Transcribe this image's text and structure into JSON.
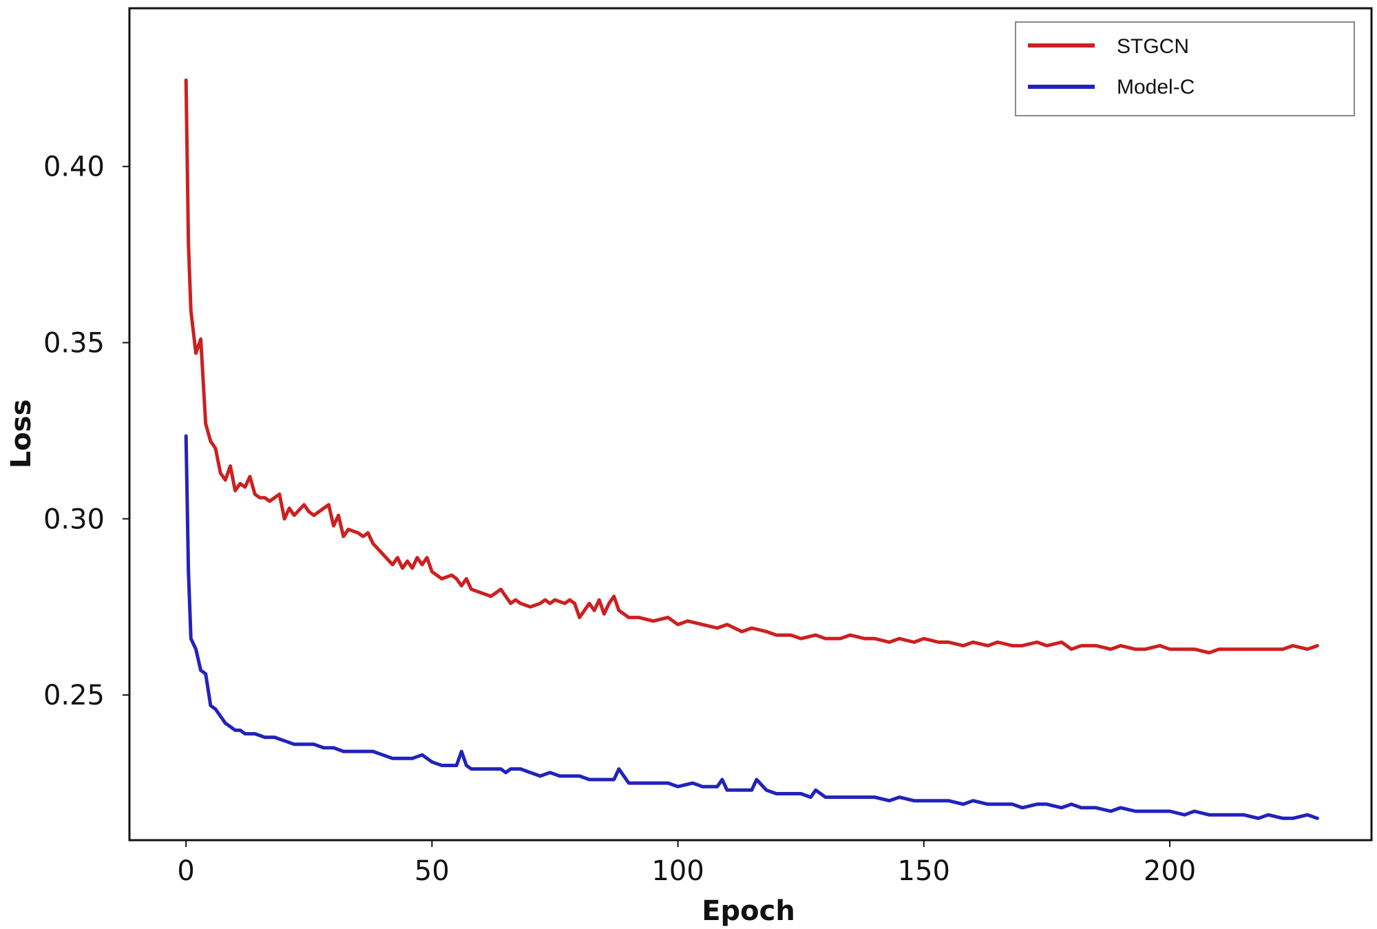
{
  "chart_data": {
    "type": "line",
    "title": "",
    "xlabel": "Epoch",
    "ylabel": "Loss",
    "xlim": [
      -11.5,
      241
    ],
    "ylim": [
      0.2088,
      0.4449
    ],
    "xticks": [
      0,
      50,
      100,
      150,
      200
    ],
    "xtick_labels": [
      "0",
      "50",
      "100",
      "150",
      "200"
    ],
    "yticks": [
      0.25,
      0.3,
      0.35,
      0.4
    ],
    "ytick_labels": [
      "0.25",
      "0.30",
      "0.35",
      "0.40"
    ],
    "grid": false,
    "legend_position": "top-right",
    "series": [
      {
        "name": "STGCN",
        "color": "#cc2020",
        "x": [
          0,
          0.5,
          1,
          2,
          3,
          4,
          5,
          6,
          7,
          8,
          9,
          10,
          11,
          12,
          13,
          14,
          15,
          16,
          17,
          18,
          19,
          20,
          21,
          22,
          24,
          25,
          26,
          28,
          29,
          30,
          31,
          32,
          33,
          35,
          36,
          37,
          38,
          40,
          42,
          43,
          44,
          45,
          46,
          47,
          48,
          49,
          50,
          52,
          54,
          55,
          56,
          57,
          58,
          60,
          62,
          63,
          64,
          66,
          67,
          68,
          70,
          72,
          73,
          74,
          75,
          77,
          78,
          79,
          80,
          82,
          83,
          84,
          85,
          86,
          87,
          88,
          90,
          92,
          95,
          98,
          100,
          102,
          105,
          108,
          110,
          113,
          115,
          118,
          120,
          123,
          125,
          128,
          130,
          133,
          135,
          138,
          140,
          143,
          145,
          148,
          150,
          153,
          155,
          158,
          160,
          163,
          165,
          168,
          170,
          173,
          175,
          178,
          180,
          182,
          185,
          188,
          190,
          193,
          195,
          198,
          200,
          203,
          205,
          208,
          210,
          213,
          215,
          218,
          220,
          223,
          225,
          228,
          230
        ],
        "values": [
          0.4245,
          0.378,
          0.359,
          0.347,
          0.351,
          0.327,
          0.322,
          0.32,
          0.313,
          0.311,
          0.315,
          0.308,
          0.31,
          0.309,
          0.312,
          0.307,
          0.306,
          0.306,
          0.305,
          0.306,
          0.307,
          0.3,
          0.303,
          0.301,
          0.304,
          0.302,
          0.301,
          0.303,
          0.304,
          0.298,
          0.301,
          0.295,
          0.297,
          0.296,
          0.295,
          0.296,
          0.293,
          0.29,
          0.287,
          0.289,
          0.286,
          0.288,
          0.286,
          0.289,
          0.287,
          0.289,
          0.285,
          0.283,
          0.284,
          0.283,
          0.281,
          0.283,
          0.28,
          0.279,
          0.278,
          0.279,
          0.28,
          0.276,
          0.277,
          0.276,
          0.275,
          0.276,
          0.277,
          0.276,
          0.277,
          0.276,
          0.277,
          0.276,
          0.272,
          0.276,
          0.274,
          0.277,
          0.273,
          0.276,
          0.278,
          0.274,
          0.272,
          0.272,
          0.271,
          0.272,
          0.27,
          0.271,
          0.27,
          0.269,
          0.27,
          0.268,
          0.269,
          0.268,
          0.267,
          0.267,
          0.266,
          0.267,
          0.266,
          0.266,
          0.267,
          0.266,
          0.266,
          0.265,
          0.266,
          0.265,
          0.266,
          0.265,
          0.265,
          0.264,
          0.265,
          0.264,
          0.265,
          0.264,
          0.264,
          0.265,
          0.264,
          0.265,
          0.263,
          0.264,
          0.264,
          0.263,
          0.264,
          0.263,
          0.263,
          0.264,
          0.263,
          0.263,
          0.263,
          0.262,
          0.263,
          0.263,
          0.263,
          0.263,
          0.263,
          0.263,
          0.264,
          0.263,
          0.264
        ]
      },
      {
        "name": "Model-C",
        "color": "#2222bb",
        "x": [
          0,
          0.5,
          1,
          2,
          3,
          4,
          5,
          6,
          7,
          8,
          9,
          10,
          11,
          12,
          14,
          16,
          18,
          20,
          22,
          24,
          26,
          28,
          30,
          32,
          34,
          36,
          38,
          40,
          42,
          44,
          46,
          48,
          50,
          52,
          54,
          55,
          56,
          57,
          58,
          60,
          62,
          64,
          65,
          66,
          68,
          70,
          72,
          74,
          76,
          78,
          80,
          82,
          84,
          86,
          87,
          88,
          90,
          92,
          95,
          98,
          100,
          103,
          105,
          108,
          109,
          110,
          113,
          115,
          116,
          118,
          120,
          123,
          125,
          127,
          128,
          130,
          133,
          135,
          138,
          140,
          143,
          145,
          148,
          150,
          153,
          155,
          158,
          160,
          163,
          165,
          168,
          170,
          173,
          175,
          178,
          180,
          182,
          185,
          188,
          190,
          193,
          195,
          198,
          200,
          203,
          205,
          208,
          210,
          213,
          215,
          218,
          220,
          223,
          225,
          228,
          230
        ],
        "values": [
          0.3235,
          0.285,
          0.266,
          0.263,
          0.257,
          0.256,
          0.247,
          0.246,
          0.244,
          0.242,
          0.241,
          0.24,
          0.24,
          0.239,
          0.239,
          0.238,
          0.238,
          0.237,
          0.236,
          0.236,
          0.236,
          0.235,
          0.235,
          0.234,
          0.234,
          0.234,
          0.234,
          0.233,
          0.232,
          0.232,
          0.232,
          0.233,
          0.231,
          0.23,
          0.23,
          0.23,
          0.234,
          0.23,
          0.229,
          0.229,
          0.229,
          0.229,
          0.228,
          0.229,
          0.229,
          0.228,
          0.227,
          0.228,
          0.227,
          0.227,
          0.227,
          0.226,
          0.226,
          0.226,
          0.226,
          0.229,
          0.225,
          0.225,
          0.225,
          0.225,
          0.224,
          0.225,
          0.224,
          0.224,
          0.226,
          0.223,
          0.223,
          0.223,
          0.226,
          0.223,
          0.222,
          0.222,
          0.222,
          0.221,
          0.223,
          0.221,
          0.221,
          0.221,
          0.221,
          0.221,
          0.22,
          0.221,
          0.22,
          0.22,
          0.22,
          0.22,
          0.219,
          0.22,
          0.219,
          0.219,
          0.219,
          0.218,
          0.219,
          0.219,
          0.218,
          0.219,
          0.218,
          0.218,
          0.217,
          0.218,
          0.217,
          0.217,
          0.217,
          0.217,
          0.216,
          0.217,
          0.216,
          0.216,
          0.216,
          0.216,
          0.215,
          0.216,
          0.215,
          0.215,
          0.216,
          0.215
        ]
      }
    ]
  }
}
